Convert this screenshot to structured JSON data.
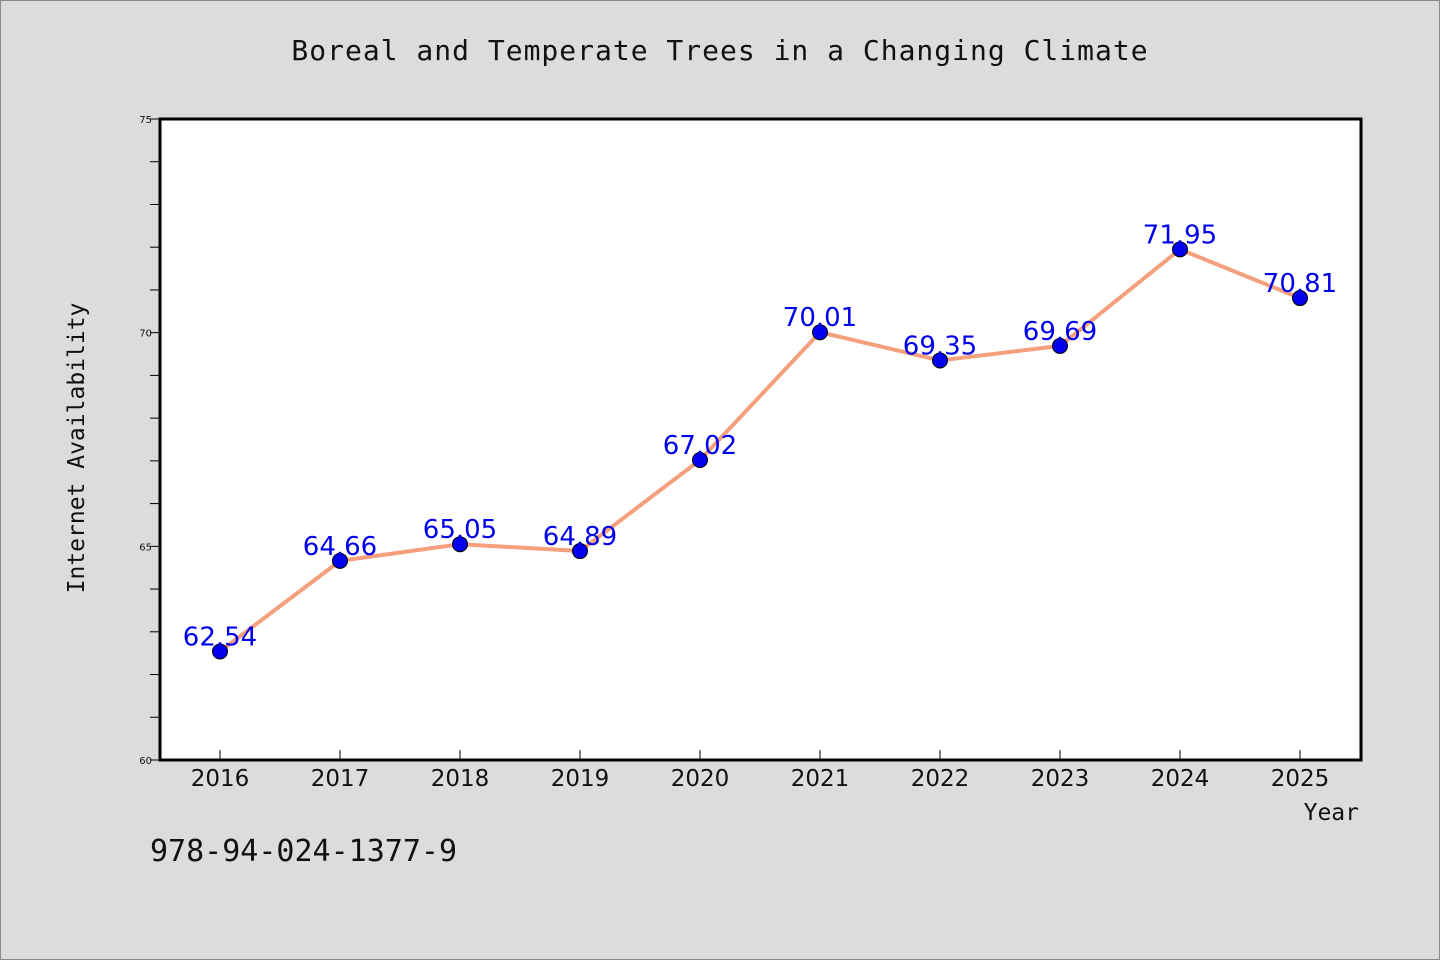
{
  "chart_data": {
    "type": "line",
    "title": "Boreal and Temperate Trees in a Changing Climate",
    "xlabel": "Year",
    "ylabel": "Internet Availability",
    "x": [
      "2016",
      "2017",
      "2018",
      "2019",
      "2020",
      "2021",
      "2022",
      "2023",
      "2024",
      "2025"
    ],
    "series": [
      {
        "values": [
          62.54,
          64.66,
          65.05,
          64.89,
          67.02,
          70.01,
          69.35,
          69.69,
          71.95,
          70.81
        ],
        "labels": [
          "62.54",
          "64.66",
          "65.05",
          "64.89",
          "67.02",
          "70.01",
          "69.35",
          "69.69",
          "71.95",
          "70.81"
        ],
        "line_color": "#f4a07c",
        "marker_color": "#0000ee"
      }
    ],
    "ylim": [
      60,
      75
    ],
    "yticks": [
      "60",
      "65",
      "70",
      "75"
    ],
    "grid": false,
    "legend": "none"
  },
  "footer": {
    "isbn": "978-94-024-1377-9"
  },
  "colors": {
    "background": "#dcdcdc",
    "plot_background": "#ffffff",
    "line": "#f4a07c",
    "marker": "#0000ee",
    "data_label": "#0000ee"
  }
}
